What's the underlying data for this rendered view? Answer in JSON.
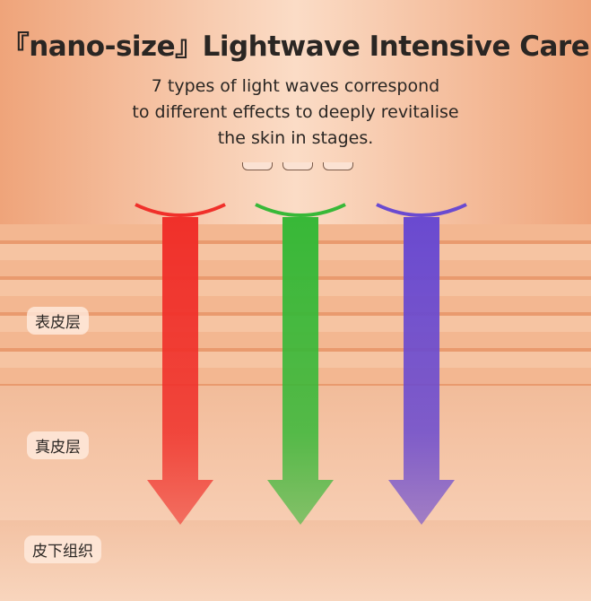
{
  "title": "『nano-size』Lightwave Intensive Care",
  "subtitle": [
    "7 types of light waves correspond",
    "to different effects to deeply revitalise",
    "the skin in stages."
  ],
  "layers": [
    "表皮层",
    "真皮层",
    "皮下组织"
  ],
  "arrows": [
    {
      "color": "#f0302a",
      "name": "red-light"
    },
    {
      "color": "#38b838",
      "name": "green-light"
    },
    {
      "color": "#6a4ad0",
      "name": "purple-light"
    }
  ]
}
